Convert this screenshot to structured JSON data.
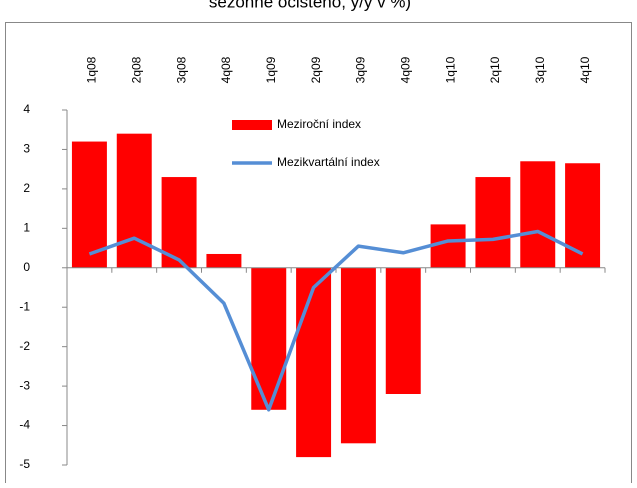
{
  "chart_data": {
    "type": "bar-line",
    "title": "sezónně očištěno, y/y v %)",
    "categories": [
      "1q08",
      "2q08",
      "3q08",
      "4q08",
      "1q09",
      "2q09",
      "3q09",
      "4q09",
      "1q10",
      "2q10",
      "3q10",
      "4q10"
    ],
    "series": [
      {
        "name": "Meziroční index",
        "type": "bar",
        "color": "#ff0000",
        "values": [
          3.2,
          3.4,
          2.3,
          0.35,
          -3.6,
          -4.8,
          -4.45,
          -3.2,
          1.1,
          2.3,
          2.7,
          2.65
        ]
      },
      {
        "name": "Mezikvartální index",
        "type": "line",
        "color": "#558ed5",
        "values": [
          0.35,
          0.75,
          0.2,
          -0.9,
          -3.6,
          -0.5,
          0.55,
          0.38,
          0.68,
          0.72,
          0.92,
          0.35
        ]
      }
    ],
    "ylim": [
      -5,
      4
    ],
    "yticks": [
      -5,
      -4,
      -3,
      -2,
      -1,
      0,
      1,
      2,
      3,
      4
    ]
  }
}
